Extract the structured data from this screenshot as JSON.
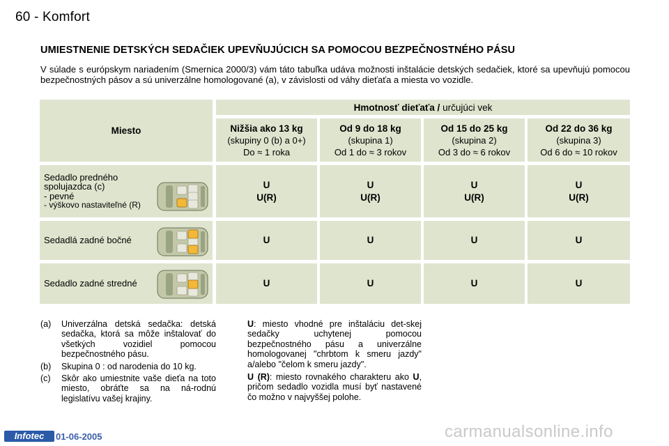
{
  "header": {
    "page_label": "60 - Komfort"
  },
  "title": "UMIESTNENIE DETSKÝCH SEDAČIEK UPEVŇUJÚCICH SA POMOCOU BEZPEČNOSTNÉHO PÁSU",
  "intro": "V súlade s európskym nariadením (Smernica 2000/3) vám táto tabuľka udáva možnosti inštalácie detských sedačiek, ktoré sa upevňujú pomocou bezpečnostných pásov a sú univerzálne homologované (a), v závislosti od váhy dieťaťa a miesta vo vozidle.",
  "table": {
    "miesto_label": "Miesto",
    "weight_header_bold": "Hmotnosť dieťaťa /",
    "weight_header_rest": " určujúci vek",
    "columns": [
      {
        "name": "Nižšia ako 13 kg",
        "group": "(skupiny 0 (b) a 0+)",
        "age": "Do ≈ 1 roka"
      },
      {
        "name": "Od 9 do 18 kg",
        "group": "(skupina 1)",
        "age": "Od 1 do ≈ 3 rokov"
      },
      {
        "name": "Od 15 do 25 kg",
        "group": "(skupina 2)",
        "age": "Od 3 do ≈ 6 rokov"
      },
      {
        "name": "Od 22 do 36 kg",
        "group": "(skupina 3)",
        "age": "Od 6 do ≈ 10 rokov"
      }
    ],
    "rows": [
      {
        "label1": "Sedadlo predného",
        "label2": "spolujazdca (c)",
        "label3": "- pevné",
        "label4": "- výškovo nastaviteľné (R)",
        "v1a": "U",
        "v1b": "U(R)",
        "v2a": "U",
        "v2b": "U(R)",
        "v3a": "U",
        "v3b": "U(R)",
        "v4a": "U",
        "v4b": "U(R)",
        "highlight": "front-passenger"
      },
      {
        "label": "Sedadlá zadné bočné",
        "values": [
          "U",
          "U",
          "U",
          "U"
        ],
        "highlight": "rear-side"
      },
      {
        "label": "Sedadlo zadné stredné",
        "values": [
          "U",
          "U",
          "U",
          "U"
        ],
        "highlight": "rear-middle"
      }
    ]
  },
  "notes_left": [
    {
      "marker": "(a)",
      "text": "Univerzálna detská sedačka: detská sedačka, ktorá sa môže inštalovať do všetkých vozidiel pomocou bezpečnostného pásu."
    },
    {
      "marker": "(b)",
      "text": "Skupina 0 : od narodenia do 10 kg."
    },
    {
      "marker": "(c)",
      "text": "Skôr ako umiestnite vaše dieťa na toto miesto, obráťte sa na ná-rodnú legislatívu vašej krajiny."
    }
  ],
  "notes_right": [
    {
      "key": "U",
      "text": ": miesto vhodné pre inštaláciu det-skej sedačky uchytenej pomocou bezpečnostného pásu a univerzálne homologovanej \"chrbtom k smeru jazdy\" a/alebo \"čelom k smeru jazdy\"."
    },
    {
      "key": "U (R)",
      "text_a": ": miesto rovnakého charakteru ako ",
      "key2": "U",
      "text_b": ", pričom sedadlo vozidla musí byť nastavené čo možno v najvyššej polohe."
    }
  ],
  "footer": {
    "logo": "Infotec",
    "date": "01-06-2005"
  },
  "watermark": "carmanualsonline.info",
  "colors": {
    "cell_bg": "#dfe4ce",
    "car_body": "#c2c8a8",
    "seat_highlight": "#f2b83a"
  }
}
